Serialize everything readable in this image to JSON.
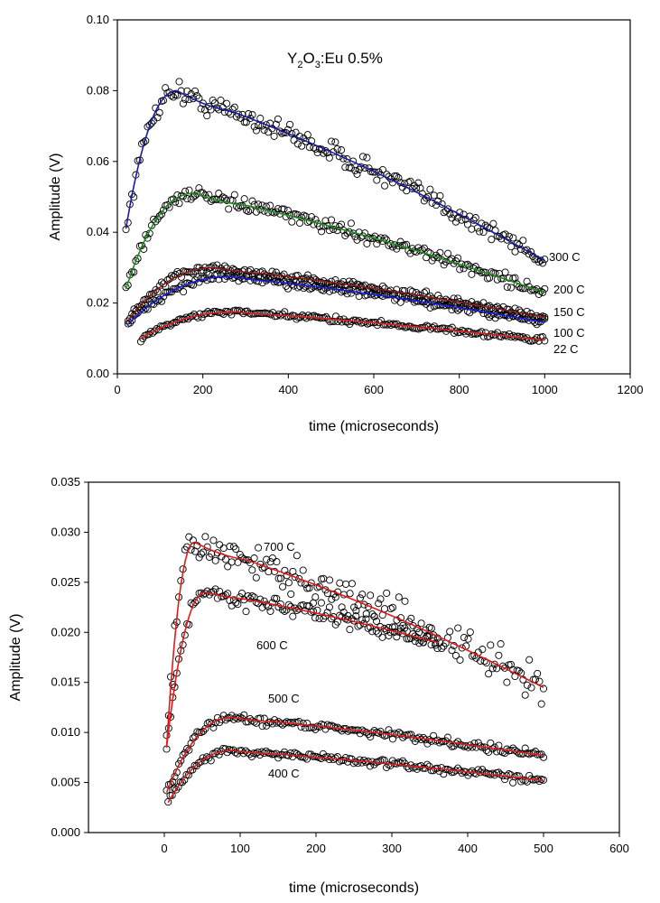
{
  "chart_data": [
    {
      "type": "scatter",
      "title_parts": {
        "base1": "Y",
        "sub1": "2",
        "base2": "O",
        "sub2": "3",
        "rest": ":Eu 0.5%"
      },
      "xlabel": "time (microseconds)",
      "ylabel": "Amplitude (V)",
      "xlim": [
        0,
        1200
      ],
      "ylim": [
        0,
        0.1
      ],
      "xticks": [
        0,
        200,
        400,
        600,
        800,
        1000,
        1200
      ],
      "yticks": [
        "0.00",
        "0.02",
        "0.04",
        "0.06",
        "0.08",
        "0.10"
      ],
      "series": [
        {
          "name": "300 C",
          "fit_color": "#1a1aa6",
          "marker_color": "#000000",
          "t_start": 20,
          "t_end": 1000,
          "peak_time": 140,
          "peak_value": 0.08,
          "start_value": 0.041,
          "end_value": 0.032,
          "noise": 0.0015
        },
        {
          "name": "200 C",
          "fit_color": "#1a8c1a",
          "marker_color": "#000000",
          "t_start": 20,
          "t_end": 1000,
          "peak_time": 180,
          "peak_value": 0.051,
          "start_value": 0.024,
          "end_value": 0.023,
          "noise": 0.0009
        },
        {
          "name": "150 C",
          "fit_color": "#8c1a1a",
          "marker_color": "#000000",
          "t_start": 25,
          "t_end": 1000,
          "peak_time": 230,
          "peak_value": 0.03,
          "start_value": 0.015,
          "end_value": 0.016,
          "noise": 0.0006
        },
        {
          "name": "100 C",
          "fit_color": "#1a1ae0",
          "marker_color": "#000000",
          "t_start": 25,
          "t_end": 1000,
          "peak_time": 270,
          "peak_value": 0.0275,
          "start_value": 0.014,
          "end_value": 0.0145,
          "noise": 0.0006
        },
        {
          "name": "22 C",
          "fit_color": "#e01a1a",
          "marker_color": "#000000",
          "t_start": 55,
          "t_end": 1000,
          "peak_time": 280,
          "peak_value": 0.0175,
          "start_value": 0.01,
          "end_value": 0.0095,
          "noise": 0.0004
        }
      ]
    },
    {
      "type": "scatter",
      "xlabel": "time (microseconds)",
      "ylabel": "Amplitude (V)",
      "xlim": [
        -100,
        600
      ],
      "ylim": [
        0,
        0.035
      ],
      "xticks": [
        0,
        100,
        200,
        300,
        400,
        500,
        600
      ],
      "yticks": [
        "0.000",
        "0.005",
        "0.010",
        "0.015",
        "0.020",
        "0.025",
        "0.030",
        "0.035"
      ],
      "series": [
        {
          "name": "700 C",
          "fit_color": "#e01a1a",
          "marker_color": "#2a2ae0",
          "t_start": 3,
          "t_end": 500,
          "peak_time": 40,
          "peak_value": 0.029,
          "start_value": 0.0085,
          "end_value": 0.0145,
          "noise": 0.0009
        },
        {
          "name": "600 C",
          "fit_color": "#e01a1a",
          "marker_color": "#000000",
          "t_start": 3,
          "t_end": 360,
          "peak_time": 55,
          "peak_value": 0.024,
          "start_value": 0.0085,
          "end_value": 0.019,
          "noise": 0.0004
        },
        {
          "name": "500 C",
          "fit_color": "#e01a1a",
          "marker_color": "#000000",
          "t_start": 3,
          "t_end": 500,
          "peak_time": 90,
          "peak_value": 0.0115,
          "start_value": 0.004,
          "end_value": 0.0077,
          "noise": 0.0002
        },
        {
          "name": "400 C",
          "fit_color": "#e01a1a",
          "marker_color": "#000000",
          "t_start": 5,
          "t_end": 500,
          "peak_time": 90,
          "peak_value": 0.0082,
          "start_value": 0.003,
          "end_value": 0.0052,
          "noise": 0.0002
        }
      ]
    }
  ]
}
